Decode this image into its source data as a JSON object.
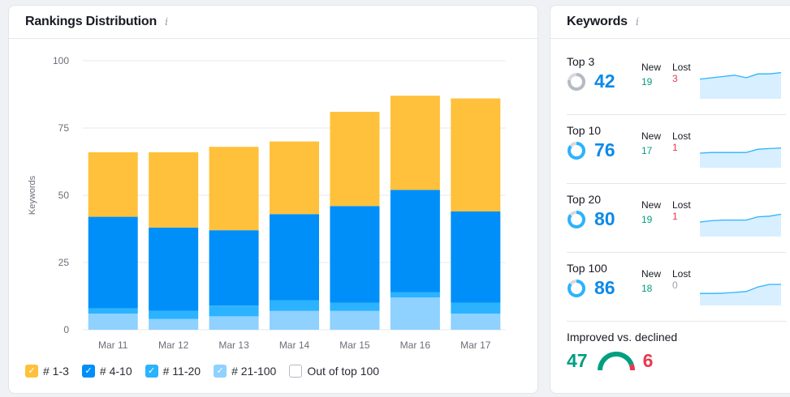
{
  "rankings": {
    "title": "Rankings Distribution",
    "info_icon": "i",
    "colors": {
      "top3": "#ffc13b",
      "top10": "#008ff8",
      "top20": "#2bb3ff",
      "top100": "#8fd1ff"
    },
    "legend": [
      {
        "label": "# 1-3",
        "color": "#ffc13b",
        "checked": true
      },
      {
        "label": "# 4-10",
        "color": "#008ff8",
        "checked": true
      },
      {
        "label": "# 11-20",
        "color": "#2bb3ff",
        "checked": true
      },
      {
        "label": "# 21-100",
        "color": "#8fd1ff",
        "checked": true
      },
      {
        "label": "Out of top 100",
        "color": "#ffffff",
        "checked": false
      }
    ]
  },
  "chart_data": {
    "type": "bar",
    "stacked": true,
    "categories": [
      "Mar 11",
      "Mar 12",
      "Mar 13",
      "Mar 14",
      "Mar 15",
      "Mar 16",
      "Mar 17"
    ],
    "ylabel": "Keywords",
    "ylim": [
      0,
      100
    ],
    "yticks": [
      0,
      25,
      50,
      75,
      100
    ],
    "grid": true,
    "series": [
      {
        "name": "# 21-100",
        "values": [
          6,
          4,
          5,
          7,
          7,
          12,
          6
        ]
      },
      {
        "name": "# 11-20",
        "values": [
          2,
          3,
          4,
          4,
          3,
          2,
          4
        ]
      },
      {
        "name": "# 4-10",
        "values": [
          34,
          31,
          28,
          32,
          36,
          38,
          34
        ]
      },
      {
        "name": "# 1-3",
        "values": [
          24,
          28,
          31,
          27,
          35,
          35,
          42
        ]
      }
    ]
  },
  "keywords": {
    "title": "Keywords",
    "info_icon": "i",
    "new_label": "New",
    "lost_label": "Lost",
    "rows": [
      {
        "label": "Top 3",
        "count": "42",
        "new": "19",
        "lost": "3",
        "lost_color": "#e8384f",
        "ring_fraction": 0.78,
        "ring_color": "#b6bac3",
        "spark": [
          14,
          15,
          16,
          17,
          15,
          18,
          18,
          19
        ]
      },
      {
        "label": "Top 10",
        "count": "76",
        "new": "17",
        "lost": "1",
        "lost_color": "#e8384f",
        "ring_fraction": 0.85,
        "ring_color": "#2bb3ff",
        "spark": [
          10,
          10.5,
          10.5,
          10.5,
          10.5,
          13,
          13.5,
          14
        ]
      },
      {
        "label": "Top 20",
        "count": "80",
        "new": "19",
        "lost": "1",
        "lost_color": "#e8384f",
        "ring_fraction": 0.85,
        "ring_color": "#2bb3ff",
        "spark": [
          10,
          11,
          11.5,
          11.5,
          11.5,
          14,
          14.5,
          16
        ]
      },
      {
        "label": "Top 100",
        "count": "86",
        "new": "18",
        "lost": "0",
        "lost_color": "#9a9ea9",
        "ring_fraction": 0.85,
        "ring_color": "#2bb3ff",
        "spark": [
          8,
          8,
          8.2,
          8.8,
          9.5,
          13,
          15,
          15
        ]
      }
    ],
    "improved_label": "Improved vs. declined",
    "improved": "47",
    "declined": "6",
    "gauge_improved_color": "#009f81",
    "gauge_declined_color": "#e8384f"
  }
}
